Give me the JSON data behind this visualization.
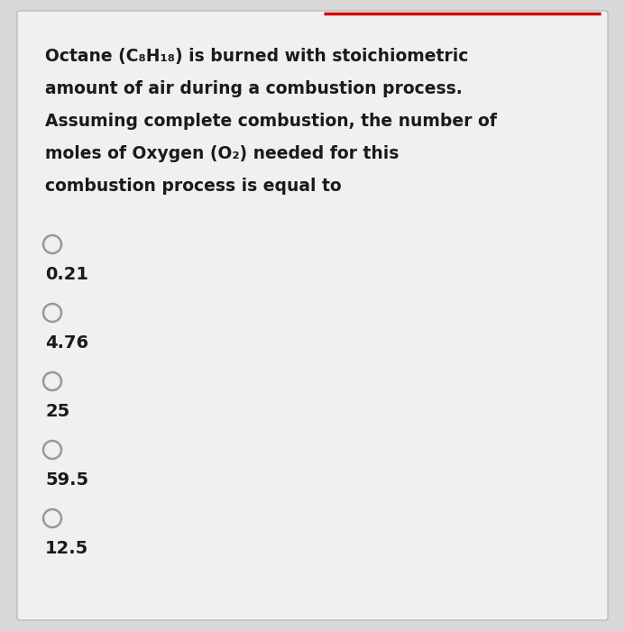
{
  "background_color": "#d8d8d8",
  "card_background": "#f0f0f0",
  "border_color": "#bbbbbb",
  "top_border_color": "#cc0000",
  "question_lines": [
    "Octane (C₈H₁₈) is burned with stoichiometric",
    "amount of air during a combustion process.",
    "Assuming complete combustion, the number of",
    "moles of Oxygen (O₂) needed for this",
    "combustion process is equal to"
  ],
  "options": [
    "0.21",
    "4.76",
    "25",
    "59.5",
    "12.5"
  ],
  "text_color": "#1a1a1a",
  "option_text_color": "#1a1a1a",
  "circle_edge_color": "#999999",
  "circle_face_color": "#f0f0f0",
  "font_size_question": 13.5,
  "font_size_options": 14.0,
  "figsize": [
    6.93,
    7.0
  ],
  "dpi": 100
}
